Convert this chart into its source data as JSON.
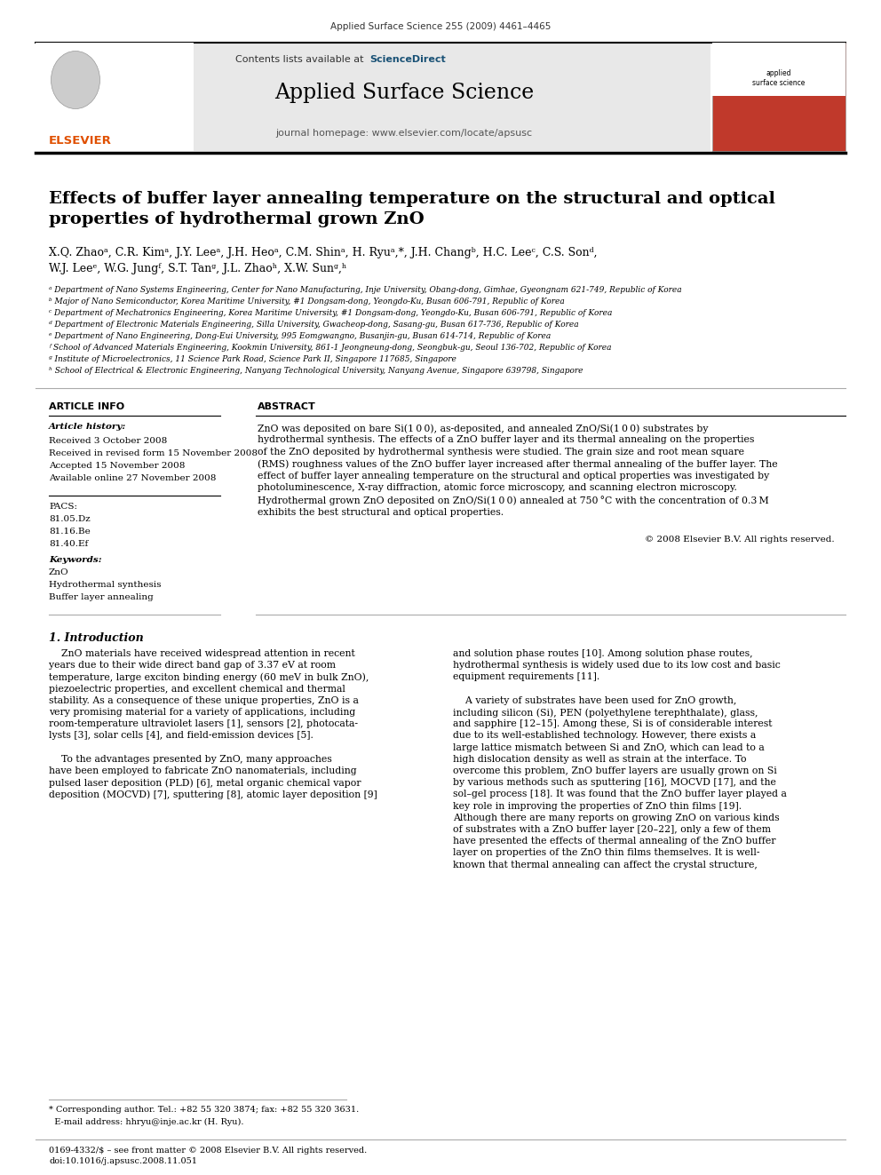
{
  "page_bg": "#ffffff",
  "journal_header_text": "Applied Surface Science 255 (2009) 4461–4465",
  "journal_name": "Applied Surface Science",
  "homepage_text": "journal homepage: www.elsevier.com/locate/apsusc",
  "paper_title": "Effects of buffer layer annealing temperature on the structural and optical\nproperties of hydrothermal grown ZnO",
  "affil_a": "ᵃ Department of Nano Systems Engineering, Center for Nano Manufacturing, Inje University, Obang-dong, Gimhae, Gyeongnam 621-749, Republic of Korea",
  "affil_b": "ᵇ Major of Nano Semiconductor, Korea Maritime University, #1 Dongsam-dong, Yeongdo-Ku, Busan 606-791, Republic of Korea",
  "affil_c": "ᶜ Department of Mechatronics Engineering, Korea Maritime University, #1 Dongsam-dong, Yeongdo-Ku, Busan 606-791, Republic of Korea",
  "affil_d": "ᵈ Department of Electronic Materials Engineering, Silla University, Gwacheop-dong, Sasang-gu, Busan 617-736, Republic of Korea",
  "affil_e": "ᵉ Department of Nano Engineering, Dong-Eui University, 995 Eomgwangno, Busanjin-gu, Busan 614-714, Republic of Korea",
  "affil_f": "ᶠ School of Advanced Materials Engineering, Kookmin University, 861-1 Jeongneung-dong, Seongbuk-gu, Seoul 136-702, Republic of Korea",
  "affil_g": "ᵍ Institute of Microelectronics, 11 Science Park Road, Science Park II, Singapore 117685, Singapore",
  "affil_h": "ʰ School of Electrical & Electronic Engineering, Nanyang Technological University, Nanyang Avenue, Singapore 639798, Singapore",
  "article_info_title": "ARTICLE INFO",
  "article_history_title": "Article history:",
  "received": "Received 3 October 2008",
  "revised": "Received in revised form 15 November 2008",
  "accepted": "Accepted 15 November 2008",
  "available": "Available online 27 November 2008",
  "pacs_title": "PACS:",
  "pacs_values": [
    "81.05.Dz",
    "81.16.Be",
    "81.40.Ef"
  ],
  "keywords_title": "Keywords:",
  "keywords": [
    "ZnO",
    "Hydrothermal synthesis",
    "Buffer layer annealing"
  ],
  "abstract_title": "ABSTRACT",
  "copyright": "© 2008 Elsevier B.V. All rights reserved.",
  "intro_title": "1. Introduction",
  "footer_text": "0169-4332/$ – see front matter © 2008 Elsevier B.V. All rights reserved.\ndoi:10.1016/j.apsusc.2008.11.051",
  "footnote_line1": "* Corresponding author. Tel.: +82 55 320 3874; fax: +82 55 320 3631.",
  "footnote_line2": "  E-mail address: hhryu@inje.ac.kr (H. Ryu).",
  "header_bg": "#e8e8e8",
  "science_direct_color": "#1a5276",
  "elsevier_color": "#e05000"
}
